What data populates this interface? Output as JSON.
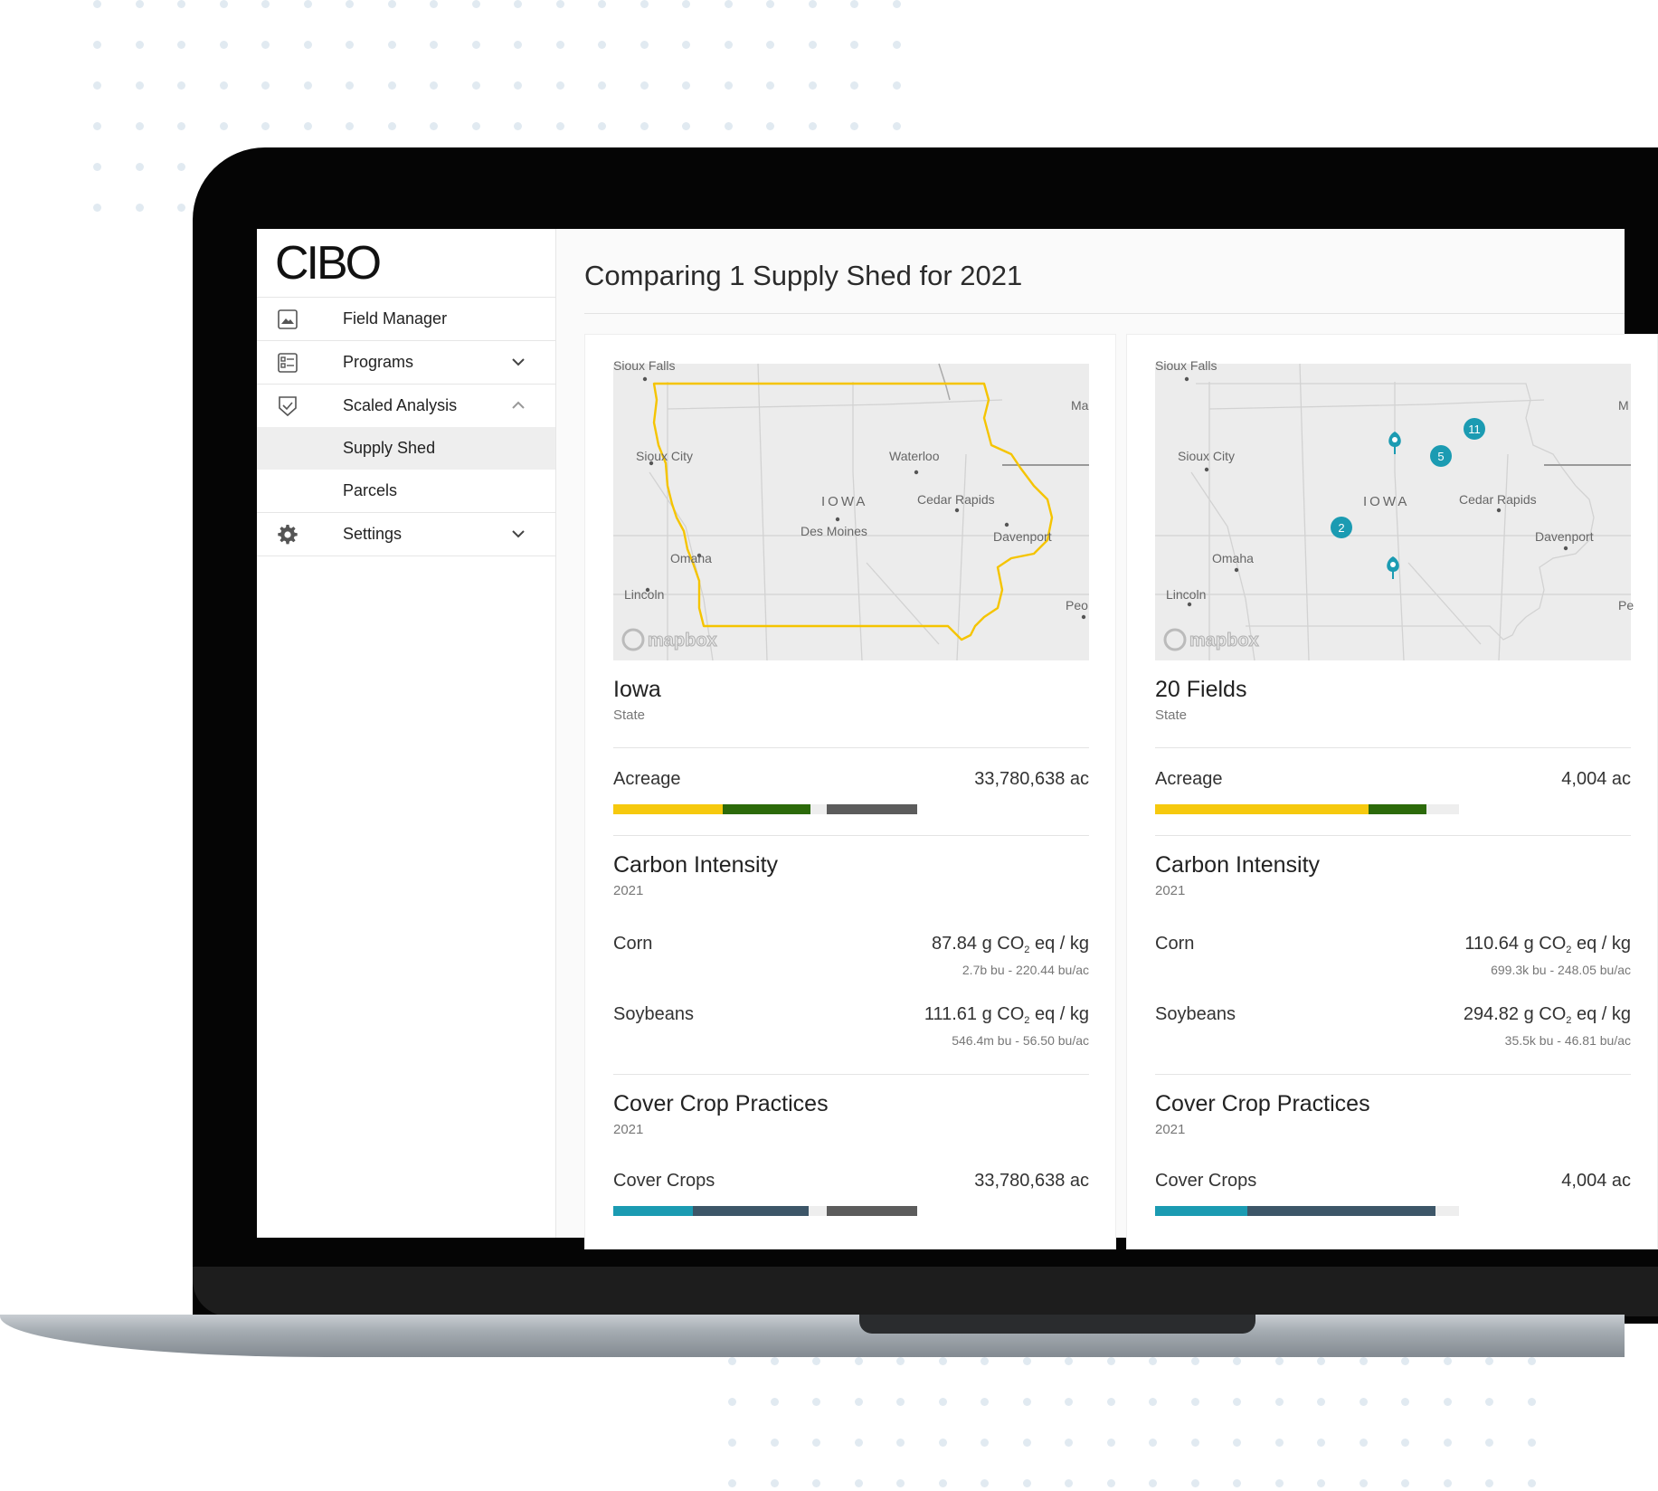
{
  "colors": {
    "yellow": "#f6c90e",
    "green": "#2c6a0a",
    "gray": "#5c5c5c",
    "teal": "#1b9bb2",
    "slate": "#3d5668",
    "track": "#eeeeee",
    "iowa_outline": "#f5c400"
  },
  "sidebar": {
    "logo": "CIBO",
    "items": [
      {
        "label": "Field Manager",
        "icon": "image-icon"
      },
      {
        "label": "Programs",
        "icon": "list-icon",
        "chevron": "chevron-down-icon"
      },
      {
        "label": "Scaled Analysis",
        "icon": "shield-check-icon",
        "chevron": "chevron-up-icon"
      },
      {
        "label": "Supply Shed",
        "sub": true,
        "active": true
      },
      {
        "label": "Parcels",
        "sub": true
      },
      {
        "label": "Settings",
        "icon": "gear-icon",
        "chevron": "chevron-down-icon"
      }
    ]
  },
  "main": {
    "title": "Comparing 1 Supply Shed for 2021"
  },
  "map": {
    "labels": {
      "sioux_falls": "Sioux Falls",
      "sioux_city": "Sioux City",
      "waterloo": "Waterloo",
      "iowa": "IOWA",
      "cedar_rapids": "Cedar Rapids",
      "des_moines": "Des Moines",
      "davenport": "Davenport",
      "omaha": "Omaha",
      "lincoln": "Lincoln",
      "peo": "Peo",
      "pe": "Pe",
      "ma": "Ma",
      "m": "M",
      "mapbox": "mapbox"
    }
  },
  "cards": [
    {
      "name": "Iowa",
      "type": "State",
      "acreage_label": "Acreage",
      "acreage_value": "33,780,638 ac",
      "acreage_bar": [
        0.36,
        0.29,
        0.3
      ],
      "carbon_title": "Carbon Intensity",
      "carbon_year": "2021",
      "corn_label": "Corn",
      "corn_value_pre": "87.84 g CO",
      "corn_value_sub": "2",
      "corn_value_post": " eq / kg",
      "corn_detail": "2.7b bu - 220.44 bu/ac",
      "soy_label": "Soybeans",
      "soy_value_pre": "111.61 g CO",
      "soy_value_sub": "2",
      "soy_value_post": " eq / kg",
      "soy_detail": "546.4m bu - 56.50 bu/ac",
      "cover_title": "Cover Crop Practices",
      "cover_year": "2021",
      "cover_label": "Cover Crops",
      "cover_value": "33,780,638 ac",
      "cover_bar": [
        0.26,
        0.38,
        0.3
      ]
    },
    {
      "name": "20 Fields",
      "type": "State",
      "acreage_label": "Acreage",
      "acreage_value": "4,004 ac",
      "acreage_bar": [
        0.7,
        0.19,
        0.0
      ],
      "carbon_title": "Carbon Intensity",
      "carbon_year": "2021",
      "corn_label": "Corn",
      "corn_value_pre": "110.64 g CO",
      "corn_value_sub": "2",
      "corn_value_post": " eq / kg",
      "corn_detail": "699.3k bu - 248.05 bu/ac",
      "soy_label": "Soybeans",
      "soy_value_pre": "294.82 g CO",
      "soy_value_sub": "2",
      "soy_value_post": " eq / kg",
      "soy_detail": "35.5k bu - 46.81 bu/ac",
      "cover_title": "Cover Crop Practices",
      "cover_year": "2021",
      "cover_label": "Cover Crops",
      "cover_value": "4,004 ac",
      "cover_bar": [
        0.3,
        0.62,
        0.0
      ],
      "markers": [
        "11",
        "5",
        "2"
      ]
    }
  ]
}
